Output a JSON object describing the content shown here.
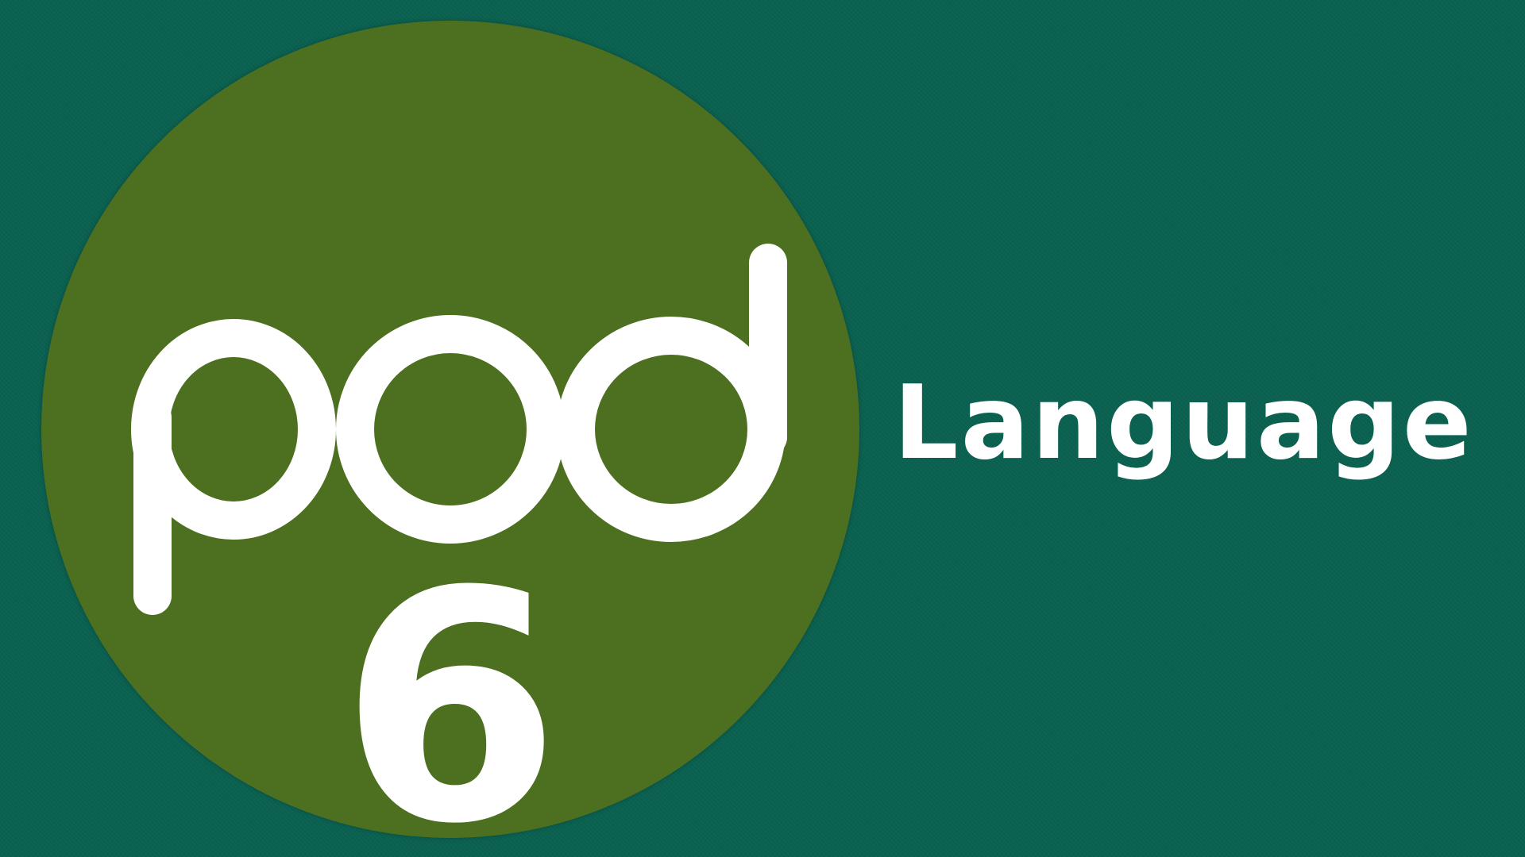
{
  "logo": {
    "wordmark": "pod",
    "number": "6",
    "circle_color": "#4d7020",
    "glyph_color": "#ffffff"
  },
  "caption": {
    "text": "Language",
    "color": "#ffffff"
  },
  "background": {
    "color": "#0b6150"
  }
}
